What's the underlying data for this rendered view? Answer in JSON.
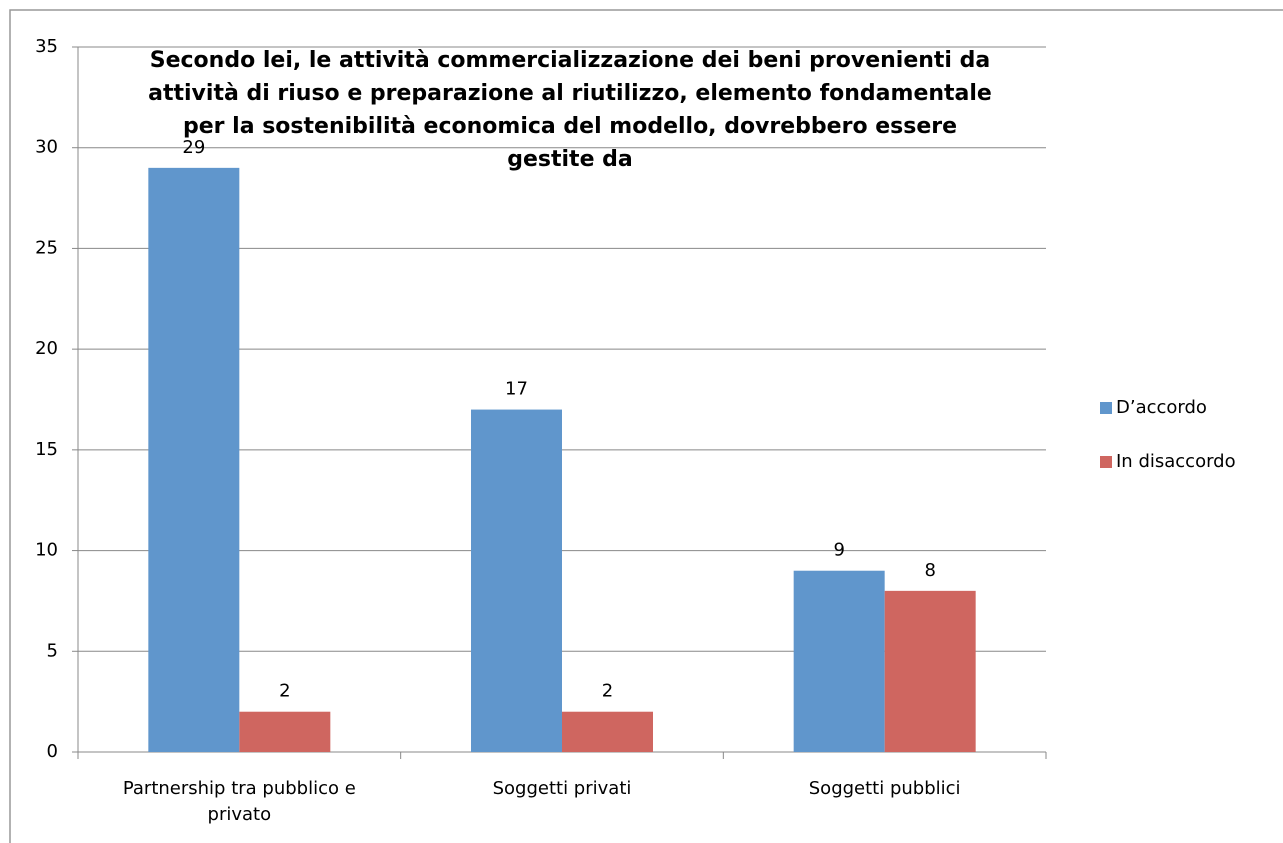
{
  "chart_data": {
    "type": "bar",
    "title": "Secondo lei, le attività commercializzazione dei beni provenienti da attività di riuso e preparazione al riutilizzo, elemento fondamentale per la sostenibilità economica del modello, dovrebbero essere gestite da",
    "categories": [
      "Partnership tra pubblico e privato",
      "Soggetti privati",
      "Soggetti pubblici"
    ],
    "series": [
      {
        "name": "D’accordo",
        "color": "#6096cc",
        "values": [
          29,
          17,
          9
        ]
      },
      {
        "name": "In disaccordo",
        "color": "#cf6660",
        "values": [
          2,
          2,
          8
        ]
      }
    ],
    "ylim": [
      0,
      35
    ],
    "yticks": [
      0,
      5,
      10,
      15,
      20,
      25,
      30,
      35
    ],
    "grid": true,
    "legend": "right"
  }
}
